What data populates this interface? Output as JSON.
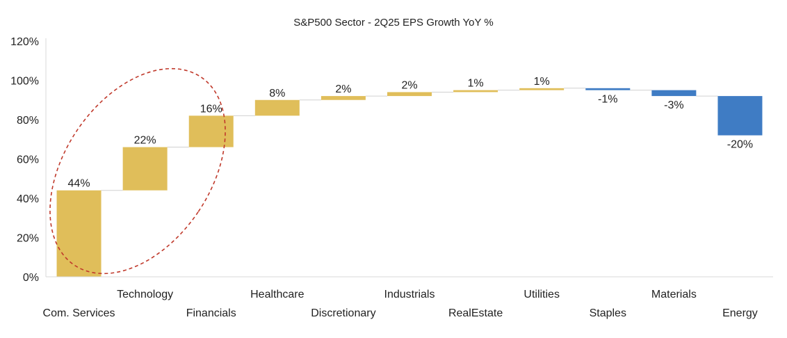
{
  "chart_data": {
    "type": "bar",
    "subtype": "waterfall",
    "title": "S&P500 Sector - 2Q25 EPS Growth YoY %",
    "xlabel": "",
    "ylabel": "",
    "ylim": [
      0,
      120
    ],
    "yticks": [
      0,
      20,
      40,
      60,
      80,
      100,
      120
    ],
    "ytick_labels": [
      "0%",
      "20%",
      "40%",
      "60%",
      "80%",
      "100%",
      "120%"
    ],
    "grid": false,
    "legend": "none",
    "categories": [
      "Com. Services",
      "Technology",
      "Financials",
      "Healthcare",
      "Discretionary",
      "Industrials",
      "RealEstate",
      "Utilities",
      "Staples",
      "Materials",
      "Energy"
    ],
    "values": [
      44,
      22,
      16,
      8,
      2,
      2,
      1,
      1,
      -1,
      -3,
      -20
    ],
    "value_labels": [
      "44%",
      "22%",
      "16%",
      "8%",
      "2%",
      "2%",
      "1%",
      "1%",
      "-1%",
      "-3%",
      "-20%"
    ],
    "colors": {
      "increase": "#E0BE5A",
      "decrease": "#3F7CC4",
      "connector": "#d0d0d0",
      "highlight": "#C0392B"
    },
    "annotation": "dashed ellipse highlighting Com. Services, Technology and Financials"
  }
}
